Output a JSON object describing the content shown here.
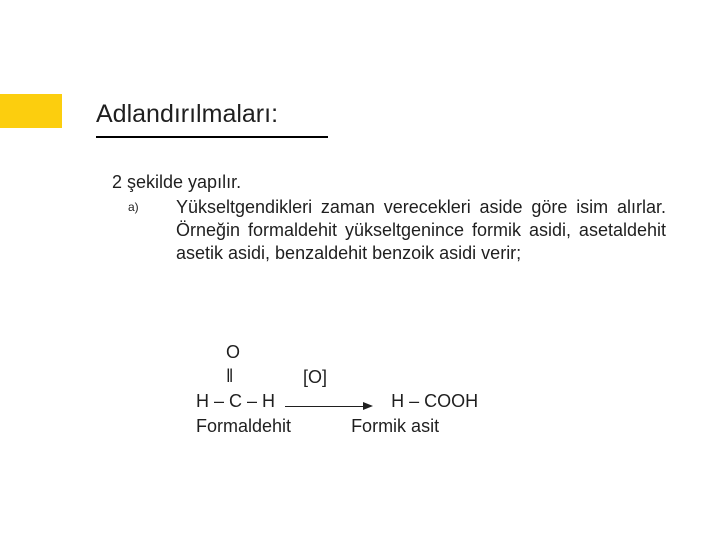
{
  "colors": {
    "accent": "#fcce0e",
    "text": "#1f1f1f",
    "bg": "#ffffff",
    "underline": "#000000"
  },
  "title": "Adlandırılmaları:",
  "intro": "2 şekilde yapılır.",
  "list": {
    "marker": "a)",
    "body": "Yükseltgendikleri zaman verecekleri aside göre isim alırlar. Örneğin formaldehit yükseltgenince formik asidi, asetaldehit asetik asidi, benzaldehit benzoik asidi verir;"
  },
  "formula": {
    "line1": "      O",
    "line2": "      ‖",
    "arrow_label": "[O]",
    "reactant": "H – C – H",
    "product": "H – COOH",
    "reactant_name": "Formaldehit",
    "product_name": "Formik asit"
  }
}
